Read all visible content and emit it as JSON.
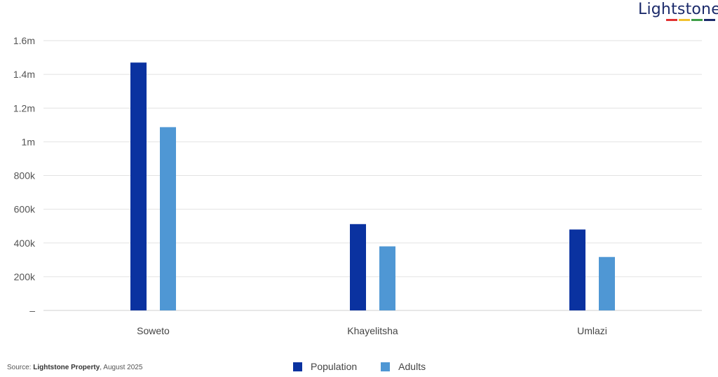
{
  "logo": {
    "text": "Lightstone",
    "stripe_colors": [
      "#e03131",
      "#f2c12e",
      "#3f9e47",
      "#1c2b6b"
    ]
  },
  "source": {
    "prefix": "Source: ",
    "name": "Lightstone Property",
    "suffix": ", August 2025"
  },
  "chart_data": {
    "type": "bar",
    "categories": [
      "Soweto",
      "Khayelitsha",
      "Umlazi"
    ],
    "series": [
      {
        "name": "Population",
        "color": "#0a32a0",
        "values": [
          1470000,
          512000,
          480000
        ]
      },
      {
        "name": "Adults",
        "color": "#4f97d4",
        "values": [
          1087000,
          380000,
          317000
        ]
      }
    ],
    "ylim": [
      0,
      1600000
    ],
    "yticks": [
      0,
      200000,
      400000,
      600000,
      800000,
      1000000,
      1200000,
      1400000,
      1600000
    ],
    "ytick_labels": [
      "–",
      "200k",
      "400k",
      "600k",
      "800k",
      "1m",
      "1.2m",
      "1.4m",
      "1.6m"
    ],
    "grid": true,
    "legend_position": "bottom",
    "title": "",
    "xlabel": "",
    "ylabel": ""
  }
}
